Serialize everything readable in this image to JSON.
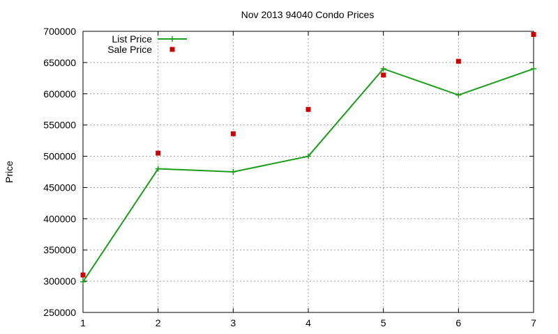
{
  "chart_data": {
    "type": "line",
    "title": "Nov 2013 94040 Condo Prices",
    "xlabel": "",
    "ylabel": "Price",
    "xlim": [
      1,
      7
    ],
    "ylim": [
      250000,
      700000
    ],
    "x_ticks": [
      "1",
      "2",
      "3",
      "4",
      "5",
      "6",
      "7"
    ],
    "y_ticks": [
      "250000",
      "300000",
      "350000",
      "400000",
      "450000",
      "500000",
      "550000",
      "600000",
      "650000",
      "700000"
    ],
    "grid": true,
    "legend_position": "top-left",
    "series": [
      {
        "name": "List Price",
        "style": "linespoints",
        "color": "#1a9e1a",
        "x": [
          1,
          2,
          3,
          4,
          5,
          6,
          7
        ],
        "values": [
          299000,
          480000,
          475000,
          500000,
          640000,
          598000,
          640000
        ]
      },
      {
        "name": "Sale Price",
        "style": "points",
        "color": "#cc0000",
        "x": [
          1,
          2,
          3,
          4,
          5,
          6,
          7
        ],
        "values": [
          310000,
          505000,
          536000,
          575000,
          630000,
          652000,
          695000
        ]
      }
    ]
  }
}
